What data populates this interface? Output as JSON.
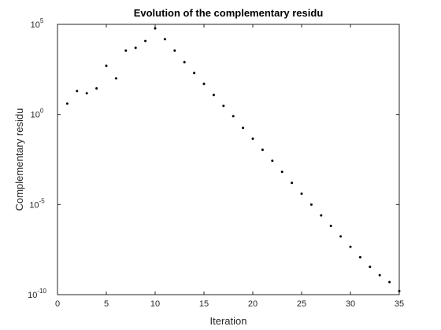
{
  "chart_data": {
    "type": "scatter",
    "title": "Evolution of the complementary residu",
    "xlabel": "Iteration",
    "ylabel": "Complementary residu",
    "xlim": [
      0,
      35
    ],
    "ylim": [
      1e-10,
      100000
    ],
    "yscale": "log",
    "grid": false,
    "box": true,
    "marker_color": "#000000",
    "xticks": [
      0,
      5,
      10,
      15,
      20,
      25,
      30,
      35
    ],
    "xtick_labels": [
      "0",
      "5",
      "10",
      "15",
      "20",
      "25",
      "30",
      "35"
    ],
    "yticks": [
      {
        "value": 100000,
        "base": "10",
        "exp": "5"
      },
      {
        "value": 1,
        "base": "10",
        "exp": "0"
      },
      {
        "value": 1e-05,
        "base": "10",
        "exp": "-5"
      },
      {
        "value": 1e-10,
        "base": "10",
        "exp": "-10"
      }
    ],
    "series": [
      {
        "x": [
          1,
          2,
          3,
          4,
          5,
          6,
          7,
          8,
          9,
          10,
          11,
          12,
          13,
          14,
          15,
          16,
          17,
          18,
          19,
          20,
          21,
          22,
          23,
          24,
          25,
          26,
          27,
          28,
          29,
          30,
          31,
          32,
          33,
          34,
          35
        ],
        "y": [
          4.0,
          20,
          15,
          28,
          500,
          100,
          3500,
          5000,
          12000,
          60000,
          15000,
          3500,
          800,
          200,
          50,
          12,
          3,
          0.8,
          0.18,
          0.045,
          0.011,
          0.0027,
          0.00065,
          0.00016,
          4e-05,
          1e-05,
          2.5e-06,
          6.5e-07,
          1.7e-07,
          4.5e-08,
          1.2e-08,
          3.5e-09,
          1.2e-09,
          5e-10,
          1.6e-10
        ]
      }
    ]
  }
}
